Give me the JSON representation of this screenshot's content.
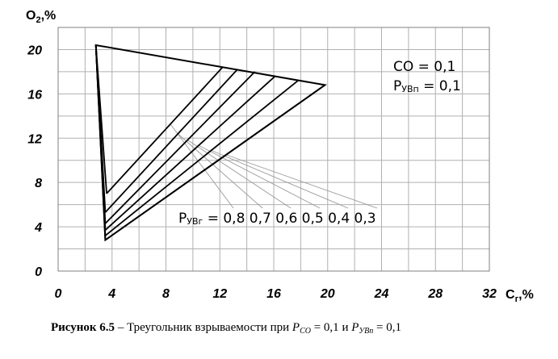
{
  "chart_data": {
    "type": "line",
    "ylabel": "O",
    "ylabel_sub": "2",
    "ylabel_suffix": ",%",
    "xlabel": "C",
    "xlabel_sub": "г",
    "xlabel_suffix": ",%",
    "xlim": [
      0,
      32
    ],
    "ylim": [
      0,
      22
    ],
    "x_ticks": [
      0,
      4,
      8,
      12,
      16,
      20,
      24,
      28,
      32
    ],
    "x_tick_labels": [
      "0",
      "4",
      "8",
      "12",
      "16",
      "20",
      "24",
      "28",
      "32"
    ],
    "y_ticks": [
      0,
      4,
      8,
      12,
      16,
      20
    ],
    "y_tick_labels": [
      "0",
      "4",
      "8",
      "12",
      "16",
      "20"
    ],
    "x_grid_step": 2,
    "y_grid_step": 2,
    "grid": true,
    "triangle": {
      "apex": [
        2.8,
        20.4
      ],
      "bottom": [
        3.5,
        2.8
      ],
      "right": [
        19.8,
        16.8
      ]
    },
    "inner_lines": [
      {
        "label": "0,8",
        "bottom": [
          3.6,
          7.0
        ],
        "top": [
          12.2,
          18.4
        ]
      },
      {
        "label": "0,7",
        "bottom": [
          3.5,
          5.3
        ],
        "top": [
          13.3,
          18.2
        ]
      },
      {
        "label": "0,6",
        "bottom": [
          3.5,
          4.3
        ],
        "top": [
          14.6,
          18.0
        ]
      },
      {
        "label": "0,5",
        "bottom": [
          3.5,
          3.7
        ],
        "top": [
          16.1,
          17.6
        ]
      },
      {
        "label": "0,4",
        "bottom": [
          3.5,
          3.2
        ],
        "top": [
          17.8,
          17.2
        ]
      },
      {
        "label": "0,3",
        "bottom": [
          3.5,
          2.8
        ],
        "top": [
          19.8,
          16.8
        ]
      }
    ],
    "annotations": {
      "co_label": "CO  = 0,1",
      "pyvp_main": "P",
      "pyvp_sub": "УВп",
      "pyvp_value": " = 0,1",
      "pyvg_main": "P",
      "pyvg_sub": "УВг",
      "pyvg_values": " = 0,8  0,7  0,6  0,5  0,4  0,3"
    }
  },
  "caption": {
    "bold": "Рисунок 6.5",
    "text": " – Треугольник взрываемости при ",
    "p1_main": "P",
    "p1_sub": "CO",
    "p1_value": " = 0,1",
    "conj": " и ",
    "p2_main": "P",
    "p2_sub": "УВп",
    "p2_value": " = 0,1"
  },
  "colors": {
    "line": "#000000",
    "grid": "#b0b0b0",
    "leader": "#9a9a9a",
    "background": "#ffffff"
  }
}
